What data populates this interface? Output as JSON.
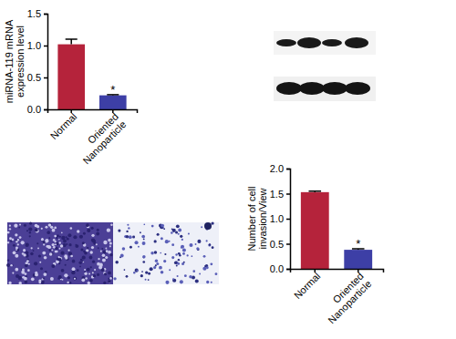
{
  "chart_data": [
    {
      "type": "bar",
      "y_label": "miRNA-119 mRNA expression level",
      "categories": [
        "Normal",
        "Oriented Nanoparticle"
      ],
      "values": [
        1.02,
        0.22
      ],
      "errors": [
        0.08,
        0.01
      ],
      "colors": [
        "#b5233b",
        "#3d3fa6"
      ],
      "ylim": [
        0,
        1.5
      ],
      "yticks": [
        {
          "value": 0,
          "label": "0.0"
        },
        {
          "value": 0.5,
          "label": "0.5"
        },
        {
          "value": 1,
          "label": "1.0"
        },
        {
          "value": 1.5,
          "label": "1.5"
        }
      ],
      "annotations": [
        {
          "text": "*",
          "category": "Oriented Nanoparticle"
        }
      ]
    },
    {
      "type": "bar",
      "y_label": "Number of cell invasion/View",
      "categories": [
        "Normal",
        "Oriented Nanoparticle"
      ],
      "values": [
        1.53,
        0.38
      ],
      "errors": [
        0.02,
        0.02
      ],
      "colors": [
        "#b5233b",
        "#3d3fa6"
      ],
      "ylim": [
        0,
        2
      ],
      "yticks": [
        {
          "value": 0,
          "label": "0.0"
        },
        {
          "value": 0.5,
          "label": "0.5"
        },
        {
          "value": 1,
          "label": "1.0"
        },
        {
          "value": 1.5,
          "label": "1.5"
        },
        {
          "value": 2,
          "label": "2.0"
        }
      ],
      "annotations": [
        {
          "text": "*",
          "category": "Oriented Nanoparticle"
        }
      ]
    }
  ]
}
